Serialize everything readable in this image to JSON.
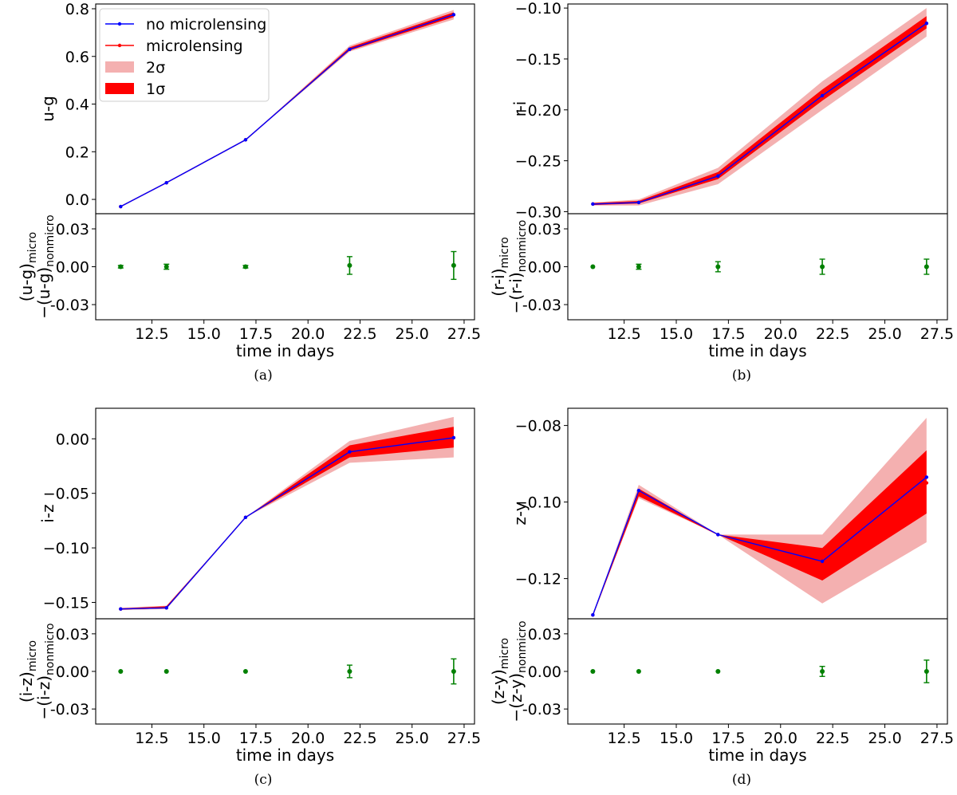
{
  "chart_data": [
    {
      "panel": "(a)",
      "type": "line",
      "title": "",
      "xlabel": "time in days",
      "ylabel": "u-g",
      "residual_ylabel_line1": "(u-g)",
      "residual_ylabel_sub1": "micro",
      "residual_ylabel_line2": "−(u-g)",
      "residual_ylabel_sub2": "nonmicro",
      "x": [
        11.0,
        13.2,
        17.0,
        22.0,
        27.0
      ],
      "xlim": [
        9.8,
        28.0
      ],
      "xticks": [
        "12.5",
        "15.0",
        "17.5",
        "20.0",
        "22.5",
        "25.0",
        "27.5"
      ],
      "ylim": [
        -0.06,
        0.82
      ],
      "yticks": [
        "0.0",
        "0.2",
        "0.4",
        "0.6",
        "0.8"
      ],
      "series": [
        {
          "name": "no microlensing",
          "color": "#0000ff",
          "values": [
            -0.03,
            0.07,
            0.25,
            0.63,
            0.775
          ]
        },
        {
          "name": "microlensing",
          "color": "#ff0000",
          "values": [
            -0.03,
            0.07,
            0.25,
            0.63,
            0.775
          ]
        }
      ],
      "band_2sigma": {
        "name": "2σ",
        "color": "#f4b0b0",
        "low": [
          -0.03,
          0.07,
          0.25,
          0.62,
          0.755
        ],
        "high": [
          -0.03,
          0.07,
          0.25,
          0.645,
          0.795
        ]
      },
      "band_1sigma": {
        "name": "1σ",
        "color": "#ff0000",
        "low": [
          -0.03,
          0.07,
          0.25,
          0.625,
          0.765
        ],
        "high": [
          -0.03,
          0.07,
          0.25,
          0.638,
          0.785
        ]
      },
      "residual": {
        "values": [
          0.0,
          0.0,
          0.0,
          0.001,
          0.001
        ],
        "errors": [
          0.001,
          0.002,
          0.001,
          0.007,
          0.011
        ],
        "ylim": [
          -0.042,
          0.042
        ],
        "yticks": [
          "0.03",
          "0.00",
          "-0.03"
        ],
        "color": "#008000"
      },
      "legend": {
        "placement": "top-left",
        "entries": [
          "no microlensing",
          "microlensing",
          "2σ",
          "1σ"
        ]
      }
    },
    {
      "panel": "(b)",
      "type": "line",
      "title": "",
      "xlabel": "time in days",
      "ylabel": "r-i",
      "residual_ylabel_line1": "(r-i)",
      "residual_ylabel_sub1": "micro",
      "residual_ylabel_line2": "−(r-i)",
      "residual_ylabel_sub2": "nonmicro",
      "x": [
        11.0,
        13.2,
        17.0,
        22.0,
        27.0
      ],
      "xlim": [
        9.8,
        28.0
      ],
      "xticks": [
        "12.5",
        "15.0",
        "17.5",
        "20.0",
        "22.5",
        "25.0",
        "27.5"
      ],
      "ylim": [
        -0.302,
        -0.096
      ],
      "yticks": [
        "−0.10",
        "−0.15",
        "−0.20",
        "−0.25",
        "−0.30"
      ],
      "series": [
        {
          "name": "no microlensing",
          "color": "#0000ff",
          "values": [
            -0.2925,
            -0.291,
            -0.265,
            -0.186,
            -0.115
          ]
        },
        {
          "name": "microlensing",
          "color": "#ff0000",
          "values": [
            -0.2925,
            -0.291,
            -0.265,
            -0.186,
            -0.115
          ]
        }
      ],
      "band_2sigma": {
        "name": "2σ",
        "color": "#f4b0b0",
        "low": [
          -0.294,
          -0.294,
          -0.273,
          -0.2,
          -0.128
        ],
        "high": [
          -0.291,
          -0.288,
          -0.257,
          -0.172,
          -0.1
        ]
      },
      "band_1sigma": {
        "name": "1σ",
        "color": "#ff0000",
        "low": [
          -0.2935,
          -0.292,
          -0.268,
          -0.191,
          -0.12
        ],
        "high": [
          -0.2915,
          -0.2895,
          -0.261,
          -0.18,
          -0.108
        ]
      },
      "residual": {
        "values": [
          0.0,
          0.0,
          0.0,
          0.0,
          0.0
        ],
        "errors": [
          0.0,
          0.002,
          0.004,
          0.006,
          0.006
        ],
        "ylim": [
          -0.042,
          0.042
        ],
        "yticks": [
          "0.03",
          "0.00",
          "-0.03"
        ],
        "color": "#008000"
      }
    },
    {
      "panel": "(c)",
      "type": "line",
      "title": "",
      "xlabel": "time in days",
      "ylabel": "i-z",
      "residual_ylabel_line1": "(i-z)",
      "residual_ylabel_sub1": "micro",
      "residual_ylabel_line2": "−(i-z)",
      "residual_ylabel_sub2": "nonmicro",
      "x": [
        11.0,
        13.2,
        17.0,
        22.0,
        27.0
      ],
      "xlim": [
        9.8,
        28.0
      ],
      "xticks": [
        "12.5",
        "15.0",
        "17.5",
        "20.0",
        "22.5",
        "25.0",
        "27.5"
      ],
      "ylim": [
        -0.165,
        0.028
      ],
      "yticks": [
        "0.00",
        "−0.05",
        "−0.10",
        "−0.15"
      ],
      "series": [
        {
          "name": "no microlensing",
          "color": "#0000ff",
          "values": [
            -0.156,
            -0.155,
            -0.072,
            -0.012,
            0.001
          ]
        },
        {
          "name": "microlensing",
          "color": "#ff0000",
          "values": [
            -0.156,
            -0.155,
            -0.072,
            -0.012,
            0.001
          ]
        }
      ],
      "band_2sigma": {
        "name": "2σ",
        "color": "#f4b0b0",
        "low": [
          -0.157,
          -0.156,
          -0.072,
          -0.022,
          -0.017
        ],
        "high": [
          -0.155,
          -0.153,
          -0.072,
          -0.002,
          0.02
        ]
      },
      "band_1sigma": {
        "name": "1σ",
        "color": "#ff0000",
        "low": [
          -0.1565,
          -0.1555,
          -0.072,
          -0.017,
          -0.008
        ],
        "high": [
          -0.1555,
          -0.1535,
          -0.072,
          -0.006,
          0.011
        ]
      },
      "residual": {
        "values": [
          0.0,
          0.0,
          0.0,
          0.0,
          0.0
        ],
        "errors": [
          0.0,
          0.0,
          0.0,
          0.005,
          0.01
        ],
        "ylim": [
          -0.042,
          0.042
        ],
        "yticks": [
          "0.03",
          "0.00",
          "-0.03"
        ],
        "color": "#008000"
      }
    },
    {
      "panel": "(d)",
      "type": "line",
      "title": "",
      "xlabel": "time in days",
      "ylabel": "z-y",
      "residual_ylabel_line1": "(z-y)",
      "residual_ylabel_sub1": "micro",
      "residual_ylabel_line2": "−(z-y)",
      "residual_ylabel_sub2": "nonmicro",
      "x": [
        11.0,
        13.2,
        17.0,
        22.0,
        27.0
      ],
      "xlim": [
        9.8,
        28.0
      ],
      "xticks": [
        "12.5",
        "15.0",
        "17.5",
        "20.0",
        "22.5",
        "25.0",
        "27.5"
      ],
      "ylim": [
        -0.1305,
        -0.0755
      ],
      "yticks": [
        "−0.08",
        "−0.10",
        "−0.12"
      ],
      "series": [
        {
          "name": "no microlensing",
          "color": "#0000ff",
          "values": [
            -0.1295,
            -0.097,
            -0.1085,
            -0.1155,
            -0.0935
          ]
        },
        {
          "name": "microlensing",
          "color": "#ff0000",
          "values": [
            -0.1295,
            -0.098,
            -0.1085,
            -0.115,
            -0.095
          ]
        }
      ],
      "band_2sigma": {
        "name": "2σ",
        "color": "#f4b0b0",
        "low": [
          -0.1295,
          -0.099,
          -0.1085,
          -0.1265,
          -0.1105
        ],
        "high": [
          -0.1295,
          -0.0955,
          -0.1085,
          -0.1085,
          -0.078
        ]
      },
      "band_1sigma": {
        "name": "1σ",
        "color": "#ff0000",
        "low": [
          -0.1295,
          -0.0985,
          -0.1085,
          -0.1205,
          -0.103
        ],
        "high": [
          -0.1295,
          -0.0965,
          -0.1085,
          -0.112,
          -0.0865
        ]
      },
      "residual": {
        "values": [
          0.0,
          0.0,
          0.0,
          0.0,
          0.0
        ],
        "errors": [
          0.0,
          0.0,
          0.0,
          0.004,
          0.009
        ],
        "ylim": [
          -0.042,
          0.042
        ],
        "yticks": [
          "0.03",
          "0.00",
          "-0.03"
        ],
        "color": "#008000"
      }
    }
  ]
}
